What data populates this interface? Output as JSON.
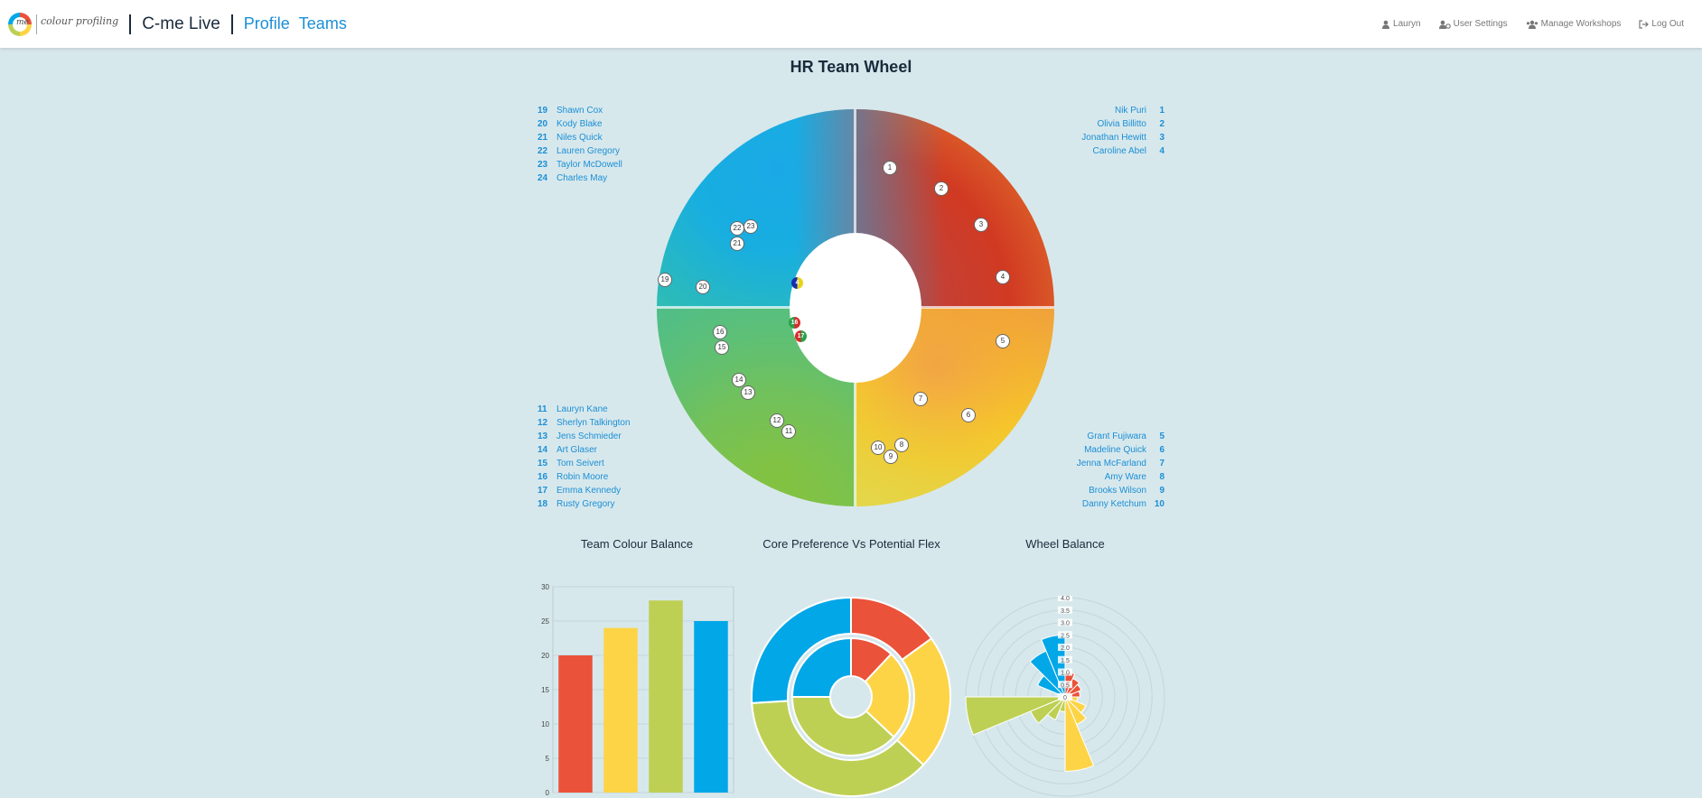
{
  "nav": {
    "brand_small": "me",
    "brand_text": "colour profiling",
    "app_title": "C-me Live",
    "links": [
      "Profile",
      "Teams"
    ],
    "right": {
      "user": "Lauryn",
      "settings": "User Settings",
      "workshops": "Manage Workshops",
      "logout": "Log Out"
    }
  },
  "page": {
    "title": "HR Team Wheel"
  },
  "members_top_left": [
    {
      "num": "19",
      "name": "Shawn Cox"
    },
    {
      "num": "20",
      "name": "Kody Blake"
    },
    {
      "num": "21",
      "name": "Niles Quick"
    },
    {
      "num": "22",
      "name": "Lauren Gregory"
    },
    {
      "num": "23",
      "name": "Taylor McDowell"
    },
    {
      "num": "24",
      "name": "Charles May"
    }
  ],
  "members_top_right": [
    {
      "num": "1",
      "name": "Nik Puri"
    },
    {
      "num": "2",
      "name": "Olivia Billitto"
    },
    {
      "num": "3",
      "name": "Jonathan Hewitt"
    },
    {
      "num": "4",
      "name": "Caroline Abel"
    }
  ],
  "members_bottom_left": [
    {
      "num": "11",
      "name": "Lauryn Kane"
    },
    {
      "num": "12",
      "name": "Sherlyn Talkington"
    },
    {
      "num": "13",
      "name": "Jens Schmieder"
    },
    {
      "num": "14",
      "name": "Art Glaser"
    },
    {
      "num": "15",
      "name": "Tom Seivert"
    },
    {
      "num": "16",
      "name": "Robin Moore"
    },
    {
      "num": "17",
      "name": "Emma Kennedy"
    },
    {
      "num": "18",
      "name": "Rusty Gregory"
    }
  ],
  "members_bottom_right": [
    {
      "num": "5",
      "name": "Grant Fujiwara"
    },
    {
      "num": "6",
      "name": "Madeline Quick"
    },
    {
      "num": "7",
      "name": "Jenna McFarland"
    },
    {
      "num": "8",
      "name": "Amy Ware"
    },
    {
      "num": "9",
      "name": "Brooks Wilson"
    },
    {
      "num": "10",
      "name": "Danny Ketchum"
    }
  ],
  "wheel_markers": [
    "1",
    "2",
    "3",
    "4",
    "5",
    "6",
    "7",
    "8",
    "9",
    "10",
    "11",
    "12",
    "13",
    "14",
    "15",
    "16",
    "19",
    "20",
    "21",
    "22",
    "23"
  ],
  "wheel_center_markers": [
    "4",
    "16",
    "17"
  ],
  "colors": {
    "red": "#ea5239",
    "yellow": "#fdd446",
    "green": "#bed054",
    "blue": "#02a7e8",
    "link": "#1b8fd6"
  },
  "charts": {
    "team_colour_balance": {
      "title": "Team Colour Balance"
    },
    "core_vs_flex": {
      "title": "Core Preference Vs Potential Flex"
    },
    "wheel_balance": {
      "title": "Wheel Balance"
    }
  },
  "chart_data": [
    {
      "type": "bar",
      "title": "Team Colour Balance",
      "categories": [
        "",
        "",
        "",
        ""
      ],
      "values": [
        20,
        24,
        28,
        25
      ],
      "colors": [
        "#ea5239",
        "#fdd446",
        "#bed054",
        "#02a7e8"
      ],
      "ylim": [
        0,
        30
      ],
      "yticks": [
        "0",
        "5",
        "10",
        "15",
        "20",
        "25",
        "30"
      ]
    },
    {
      "type": "pie",
      "title": "Core Preference Vs Potential Flex",
      "series": [
        {
          "values": [
            15,
            22,
            37,
            26
          ],
          "colors": [
            "#ea5239",
            "#fdd446",
            "#bed054",
            "#02a7e8"
          ]
        },
        {
          "values": [
            12,
            25,
            38,
            25
          ],
          "colors": [
            "#ea5239",
            "#fdd446",
            "#bed054",
            "#02a7e8"
          ]
        }
      ]
    },
    {
      "type": "polar",
      "title": "Wheel Balance",
      "rlim": [
        0,
        4.0
      ],
      "rticks": [
        "0",
        "0.5",
        "1.0",
        "1.5",
        "2.0",
        "2.5",
        "3.0",
        "3.5",
        "4.0"
      ],
      "values": [
        1.0,
        0.8,
        0.7,
        0.6,
        0.5,
        0.9,
        1.2,
        3.0,
        0.6,
        1.0,
        1.5,
        4.0,
        0.3,
        1.2,
        2.0,
        2.5
      ],
      "colors": [
        "#ea5239",
        "#ea5239",
        "#ea5239",
        "#ea5239",
        "#fdd446",
        "#fdd446",
        "#fdd446",
        "#fdd446",
        "#bed054",
        "#bed054",
        "#bed054",
        "#bed054",
        "#02a7e8",
        "#02a7e8",
        "#02a7e8",
        "#02a7e8"
      ]
    }
  ]
}
